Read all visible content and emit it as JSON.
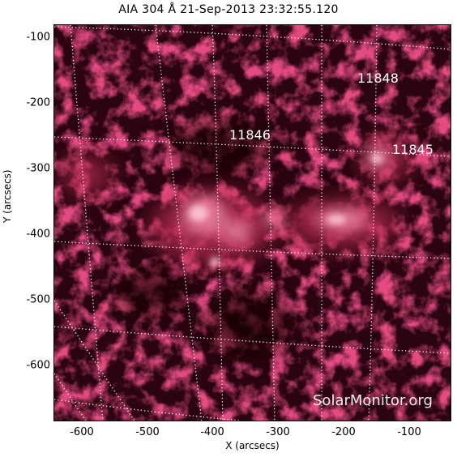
{
  "title": "AIA 304 Å 21-Sep-2013 23:32:55.120",
  "axes": {
    "xlabel": "X (arcsecs)",
    "ylabel": "Y (arcsecs)",
    "xticks": [
      "-600",
      "-500",
      "-400",
      "-300",
      "-200",
      "-100"
    ],
    "yticks": [
      "-100",
      "-200",
      "-300",
      "-400",
      "-500",
      "-600"
    ]
  },
  "regions": [
    {
      "id": "11848",
      "label": "11848"
    },
    {
      "id": "11846",
      "label": "11846"
    },
    {
      "id": "11845",
      "label": "11845"
    }
  ],
  "watermark": "SolarMonitor.org",
  "colors": {
    "colormap": "sdoaia304 red",
    "grid": "#ffffff",
    "labels": "#ffffff"
  }
}
